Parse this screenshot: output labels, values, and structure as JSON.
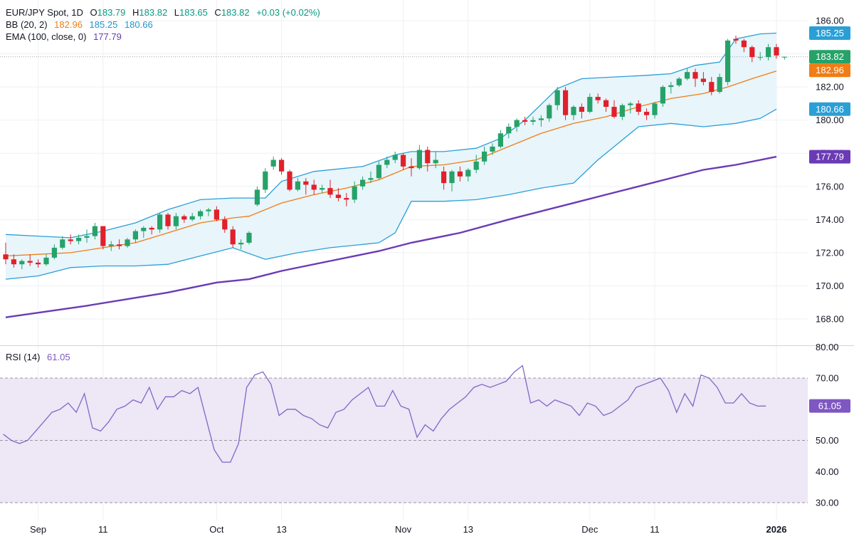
{
  "legend": {
    "main": {
      "symbol": "EUR/JPY Spot, 1D",
      "o_label": "O",
      "o_value": "183.79",
      "h_label": "H",
      "h_value": "183.82",
      "l_label": "L",
      "l_value": "183.65",
      "c_label": "C",
      "c_value": "183.82",
      "change": "+0.03 (+0.02%)"
    },
    "bb": {
      "label": "BB (20, 2)",
      "basis": "182.96",
      "upper": "185.25",
      "lower": "180.66"
    },
    "ema": {
      "label": "EMA (100, close, 0)",
      "value": "177.79"
    },
    "rsi": {
      "label": "RSI (14)",
      "value": "61.05"
    }
  },
  "colors": {
    "up": "#26a269",
    "down": "#e0202a",
    "bb_band": "#2a9fd6",
    "bb_basis": "#f07d15",
    "bb_fill": "#e8f5fb",
    "ema": "#6a3bb5",
    "rsi_line": "#8466c4",
    "rsi_fill": "#ede7f6",
    "grid": "#eef0f3",
    "last_price": "#26a269"
  },
  "badges": {
    "bb_upper": "185.25",
    "last_price": "183.82",
    "bb_basis": "182.96",
    "bb_lower": "180.66",
    "ema": "177.79",
    "rsi": "61.05"
  },
  "chart_data": [
    {
      "type": "candlestick",
      "title": "EUR/JPY Spot, 1D",
      "ylim": [
        167,
        186.5
      ],
      "y_ticks": [
        "186.00",
        "184.00",
        "182.00",
        "180.00",
        "178.00",
        "176.00",
        "174.00",
        "172.00",
        "170.00",
        "168.00"
      ],
      "x_ticks": [
        {
          "label": "Sep",
          "index": 4
        },
        {
          "label": "11",
          "index": 12
        },
        {
          "label": "Oct",
          "index": 26
        },
        {
          "label": "13",
          "index": 34
        },
        {
          "label": "Nov",
          "index": 49
        },
        {
          "label": "13",
          "index": 57
        },
        {
          "label": "Dec",
          "index": 72
        },
        {
          "label": "11",
          "index": 80
        },
        {
          "label": "2026",
          "index": 95
        }
      ],
      "ohlc": [
        [
          171.9,
          172.6,
          171.3,
          171.6
        ],
        [
          171.6,
          171.9,
          171.1,
          171.3
        ],
        [
          171.3,
          171.6,
          171.0,
          171.5
        ],
        [
          171.5,
          171.9,
          171.2,
          171.4
        ],
        [
          171.4,
          171.6,
          171.1,
          171.3
        ],
        [
          171.3,
          171.9,
          171.2,
          171.7
        ],
        [
          171.7,
          172.5,
          171.6,
          172.3
        ],
        [
          172.3,
          173.0,
          172.2,
          172.8
        ],
        [
          172.8,
          173.1,
          172.5,
          172.7
        ],
        [
          172.7,
          173.1,
          172.5,
          172.9
        ],
        [
          172.9,
          173.4,
          172.6,
          173.0
        ],
        [
          173.0,
          173.8,
          172.8,
          173.6
        ],
        [
          173.6,
          173.6,
          172.2,
          172.4
        ],
        [
          172.4,
          172.7,
          172.1,
          172.5
        ],
        [
          172.5,
          172.8,
          172.2,
          172.4
        ],
        [
          172.4,
          172.9,
          172.3,
          172.8
        ],
        [
          172.8,
          173.4,
          172.6,
          173.3
        ],
        [
          173.3,
          173.6,
          172.9,
          173.5
        ],
        [
          173.5,
          173.6,
          173.1,
          173.4
        ],
        [
          173.4,
          174.4,
          173.2,
          174.3
        ],
        [
          174.3,
          174.4,
          173.4,
          173.6
        ],
        [
          173.6,
          174.4,
          173.4,
          174.2
        ],
        [
          174.2,
          174.3,
          173.8,
          174.0
        ],
        [
          174.0,
          174.4,
          173.9,
          174.2
        ],
        [
          174.2,
          174.6,
          174.0,
          174.5
        ],
        [
          174.5,
          174.7,
          174.2,
          174.6
        ],
        [
          174.6,
          174.8,
          173.9,
          174.0
        ],
        [
          174.0,
          174.2,
          173.2,
          173.4
        ],
        [
          173.4,
          173.6,
          172.3,
          172.5
        ],
        [
          172.5,
          172.8,
          172.2,
          172.6
        ],
        [
          172.6,
          173.3,
          172.5,
          173.2
        ],
        [
          174.9,
          176.0,
          174.8,
          175.8
        ],
        [
          175.8,
          177.1,
          175.6,
          176.9
        ],
        [
          177.2,
          177.8,
          177.0,
          177.6
        ],
        [
          177.6,
          177.7,
          176.7,
          176.9
        ],
        [
          176.9,
          177.0,
          175.7,
          175.8
        ],
        [
          175.8,
          176.5,
          175.7,
          176.3
        ],
        [
          176.3,
          176.5,
          175.5,
          176.1
        ],
        [
          176.1,
          176.4,
          175.5,
          175.8
        ],
        [
          175.8,
          176.1,
          175.6,
          175.9
        ],
        [
          175.9,
          176.4,
          175.3,
          175.5
        ],
        [
          175.5,
          175.9,
          175.1,
          175.3
        ],
        [
          175.3,
          175.6,
          174.8,
          175.2
        ],
        [
          175.2,
          176.3,
          175.0,
          176.0
        ],
        [
          176.0,
          176.6,
          175.8,
          176.4
        ],
        [
          176.4,
          176.9,
          176.2,
          176.5
        ],
        [
          176.5,
          177.5,
          176.4,
          177.3
        ],
        [
          177.3,
          177.8,
          177.1,
          177.6
        ],
        [
          177.6,
          178.1,
          177.4,
          177.9
        ],
        [
          177.9,
          178.0,
          177.0,
          177.2
        ],
        [
          177.2,
          177.7,
          176.6,
          177.1
        ],
        [
          177.1,
          178.5,
          177.0,
          178.2
        ],
        [
          178.2,
          178.4,
          176.9,
          177.4
        ],
        [
          177.4,
          178.1,
          177.1,
          177.6
        ],
        [
          176.9,
          177.2,
          175.8,
          176.2
        ],
        [
          176.2,
          177.0,
          175.7,
          176.9
        ],
        [
          176.9,
          177.2,
          176.3,
          176.6
        ],
        [
          176.6,
          177.1,
          176.3,
          177.0
        ],
        [
          177.0,
          177.9,
          176.8,
          177.5
        ],
        [
          177.5,
          178.4,
          177.3,
          178.1
        ],
        [
          178.1,
          178.6,
          177.9,
          178.4
        ],
        [
          178.4,
          179.4,
          178.3,
          179.2
        ],
        [
          179.2,
          179.8,
          178.9,
          179.6
        ],
        [
          179.6,
          180.1,
          179.3,
          180.0
        ],
        [
          180.0,
          180.2,
          179.7,
          179.9
        ],
        [
          179.9,
          180.2,
          179.7,
          180.0
        ],
        [
          180.0,
          180.3,
          179.6,
          180.1
        ],
        [
          180.1,
          181.0,
          179.9,
          180.9
        ],
        [
          180.9,
          182.0,
          180.6,
          181.8
        ],
        [
          181.8,
          182.0,
          180.0,
          180.3
        ],
        [
          180.3,
          180.9,
          180.0,
          180.8
        ],
        [
          180.8,
          181.0,
          180.1,
          180.5
        ]
      ],
      "ohlc_cont": [
        [
          180.5,
          181.6,
          180.4,
          181.4
        ],
        [
          181.4,
          181.6,
          181.0,
          181.2
        ],
        [
          181.2,
          181.3,
          180.5,
          180.8
        ],
        [
          180.8,
          181.2,
          180.1,
          180.2
        ],
        [
          180.2,
          181.0,
          180.0,
          180.9
        ],
        [
          180.9,
          181.1,
          180.4,
          181.0
        ],
        [
          181.0,
          181.2,
          180.3,
          180.5
        ],
        [
          180.5,
          180.7,
          180.0,
          180.3
        ],
        [
          180.3,
          181.1,
          180.1,
          181.0
        ],
        [
          181.0,
          182.1,
          180.8,
          182.0
        ],
        [
          182.0,
          182.3,
          181.6,
          182.1
        ],
        [
          182.1,
          182.6,
          182.0,
          182.5
        ],
        [
          182.5,
          183.1,
          182.4,
          182.9
        ],
        [
          182.9,
          183.1,
          182.0,
          182.5
        ],
        [
          182.5,
          182.9,
          182.1,
          182.3
        ],
        [
          182.3,
          182.6,
          181.5,
          181.7
        ],
        [
          181.7,
          182.8,
          181.6,
          182.6
        ],
        [
          182.3,
          184.9,
          182.1,
          184.8
        ],
        [
          184.9,
          185.1,
          184.6,
          184.8
        ],
        [
          184.8,
          184.9,
          184.1,
          184.4
        ],
        [
          184.4,
          184.5,
          183.5,
          183.8
        ],
        [
          183.8,
          184.1,
          183.6,
          183.8
        ],
        [
          183.8,
          184.6,
          183.6,
          184.4
        ],
        [
          184.4,
          184.6,
          183.7,
          183.9
        ],
        [
          183.79,
          183.82,
          183.65,
          183.82
        ]
      ],
      "bb_upper": [
        [
          0,
          173.1
        ],
        [
          4,
          173.0
        ],
        [
          8,
          172.9
        ],
        [
          12,
          173.3
        ],
        [
          16,
          173.8
        ],
        [
          20,
          174.6
        ],
        [
          24,
          175.2
        ],
        [
          28,
          175.3
        ],
        [
          32,
          175.3
        ],
        [
          34,
          176.3
        ],
        [
          38,
          176.9
        ],
        [
          44,
          177.2
        ],
        [
          48,
          177.9
        ],
        [
          50,
          178.1
        ],
        [
          54,
          178.1
        ],
        [
          58,
          178.3
        ],
        [
          61,
          178.9
        ],
        [
          64,
          180.0
        ],
        [
          68,
          181.9
        ],
        [
          71,
          182.5
        ],
        [
          75,
          182.6
        ],
        [
          79,
          182.7
        ],
        [
          82,
          182.8
        ],
        [
          85,
          183.3
        ],
        [
          88,
          183.5
        ],
        [
          90,
          184.9
        ],
        [
          93,
          185.2
        ],
        [
          95,
          185.25
        ]
      ],
      "bb_basis": [
        [
          0,
          171.8
        ],
        [
          4,
          171.9
        ],
        [
          8,
          172.0
        ],
        [
          12,
          172.3
        ],
        [
          16,
          172.6
        ],
        [
          20,
          173.2
        ],
        [
          24,
          173.8
        ],
        [
          28,
          174.1
        ],
        [
          30,
          174.2
        ],
        [
          34,
          175.0
        ],
        [
          38,
          175.5
        ],
        [
          42,
          175.9
        ],
        [
          46,
          176.4
        ],
        [
          50,
          177.2
        ],
        [
          54,
          177.3
        ],
        [
          58,
          177.6
        ],
        [
          62,
          178.4
        ],
        [
          66,
          179.2
        ],
        [
          70,
          179.8
        ],
        [
          74,
          180.2
        ],
        [
          78,
          180.8
        ],
        [
          82,
          181.3
        ],
        [
          86,
          181.6
        ],
        [
          89,
          182.0
        ],
        [
          92,
          182.5
        ],
        [
          95,
          182.96
        ]
      ],
      "bb_lower": [
        [
          0,
          170.4
        ],
        [
          4,
          170.6
        ],
        [
          8,
          171.1
        ],
        [
          12,
          171.2
        ],
        [
          16,
          171.2
        ],
        [
          20,
          171.3
        ],
        [
          24,
          171.8
        ],
        [
          28,
          172.3
        ],
        [
          32,
          171.6
        ],
        [
          36,
          172.0
        ],
        [
          40,
          172.3
        ],
        [
          44,
          172.5
        ],
        [
          46,
          172.6
        ],
        [
          48,
          173.2
        ],
        [
          50,
          175.1
        ],
        [
          54,
          175.1
        ],
        [
          58,
          175.2
        ],
        [
          62,
          175.5
        ],
        [
          66,
          175.9
        ],
        [
          70,
          176.2
        ],
        [
          73,
          177.6
        ],
        [
          75,
          178.4
        ],
        [
          78,
          179.6
        ],
        [
          82,
          179.8
        ],
        [
          86,
          179.6
        ],
        [
          90,
          179.8
        ],
        [
          93,
          180.1
        ],
        [
          95,
          180.66
        ]
      ],
      "ema": [
        [
          0,
          168.1
        ],
        [
          10,
          168.8
        ],
        [
          20,
          169.6
        ],
        [
          26,
          170.2
        ],
        [
          30,
          170.4
        ],
        [
          34,
          170.9
        ],
        [
          40,
          171.5
        ],
        [
          46,
          172.1
        ],
        [
          50,
          172.6
        ],
        [
          56,
          173.2
        ],
        [
          62,
          174.0
        ],
        [
          66,
          174.5
        ],
        [
          70,
          175.0
        ],
        [
          74,
          175.5
        ],
        [
          78,
          176.0
        ],
        [
          82,
          176.5
        ],
        [
          86,
          177.0
        ],
        [
          90,
          177.3
        ],
        [
          95,
          177.79
        ]
      ]
    },
    {
      "type": "line",
      "title": "RSI (14)",
      "ylim": [
        27,
        80
      ],
      "y_ticks": [
        "80.00",
        "70.00",
        "60.00",
        "50.00",
        "40.00",
        "30.00"
      ],
      "levels": [
        70,
        50,
        30
      ],
      "values": [
        52,
        50,
        49,
        50,
        53,
        56,
        59,
        60,
        62,
        59,
        65,
        54,
        53,
        56,
        60,
        61,
        63,
        62,
        67,
        60,
        64,
        64,
        66,
        65,
        67,
        57,
        47,
        43,
        43,
        49,
        67,
        71,
        72,
        68,
        58,
        60,
        60,
        58,
        57,
        55,
        54,
        59,
        60,
        63,
        65,
        67,
        61,
        61,
        66,
        61,
        60,
        51,
        55,
        53,
        57,
        60,
        62,
        64,
        67,
        68,
        67,
        68,
        69,
        72,
        74,
        62,
        63,
        61,
        63,
        62,
        61,
        58,
        62,
        61,
        58,
        59,
        61,
        63,
        67,
        68,
        69,
        70,
        66,
        59,
        65,
        61,
        71,
        70,
        67,
        62,
        62,
        65,
        62,
        61,
        61.05
      ]
    }
  ]
}
